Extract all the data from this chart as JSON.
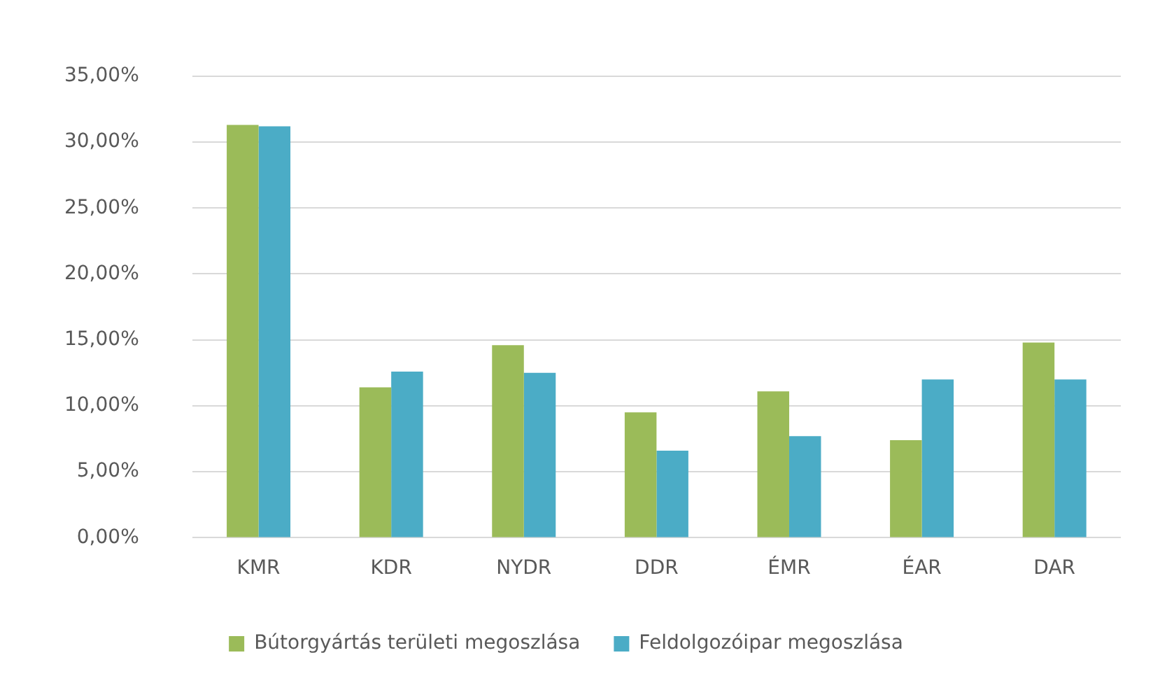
{
  "chart_data": {
    "type": "bar",
    "categories": [
      "KMR",
      "KDR",
      "NYDR",
      "DDR",
      "ÉMR",
      "ÉAR",
      "DAR"
    ],
    "series": [
      {
        "name": "Bútorgyártás területi megoszlása",
        "color": "#9bbb59",
        "values": [
          31.3,
          11.4,
          14.6,
          9.5,
          11.1,
          7.4,
          14.8
        ]
      },
      {
        "name": "Feldolgozóipar megoszlása",
        "color": "#4bacc6",
        "values": [
          31.2,
          12.6,
          12.5,
          6.6,
          7.7,
          12.0,
          12.0
        ]
      }
    ],
    "ylim": [
      0,
      35
    ],
    "yticks": [
      {
        "value": 0,
        "label": "0,00%"
      },
      {
        "value": 5,
        "label": "5,00%"
      },
      {
        "value": 10,
        "label": "10,00%"
      },
      {
        "value": 15,
        "label": "15,00%"
      },
      {
        "value": 20,
        "label": "20,00%"
      },
      {
        "value": 25,
        "label": "25,00%"
      },
      {
        "value": 30,
        "label": "30,00%"
      },
      {
        "value": 35,
        "label": "35,00%"
      }
    ],
    "grid": "y",
    "legend": "bottom"
  }
}
